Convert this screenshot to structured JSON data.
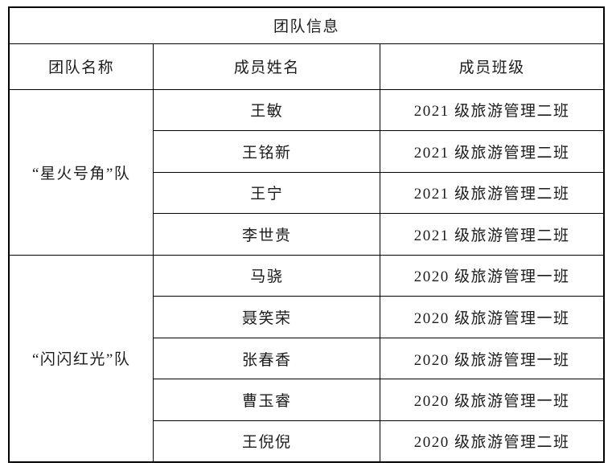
{
  "table": {
    "title": "团队信息",
    "headers": [
      "团队名称",
      "成员姓名",
      "成员班级"
    ],
    "teams": [
      {
        "name": "“星火号角”队",
        "members": [
          {
            "name": "王敏",
            "class": "2021 级旅游管理二班"
          },
          {
            "name": "王铭新",
            "class": "2021 级旅游管理二班"
          },
          {
            "name": "王宁",
            "class": "2021 级旅游管理二班"
          },
          {
            "name": "李世贵",
            "class": "2021 级旅游管理二班"
          }
        ]
      },
      {
        "name": "“闪闪红光”队",
        "members": [
          {
            "name": "马骁",
            "class": "2020 级旅游管理一班"
          },
          {
            "name": "聂笑荣",
            "class": "2020 级旅游管理一班"
          },
          {
            "name": "张春香",
            "class": "2020 级旅游管理一班"
          },
          {
            "name": "曹玉睿",
            "class": "2020 级旅游管理一班"
          },
          {
            "name": "王倪倪",
            "class": "2020 级旅游管理二班"
          }
        ]
      }
    ],
    "colors": {
      "border": "#000000",
      "background": "#ffffff",
      "text": "#1c1c1c"
    }
  }
}
